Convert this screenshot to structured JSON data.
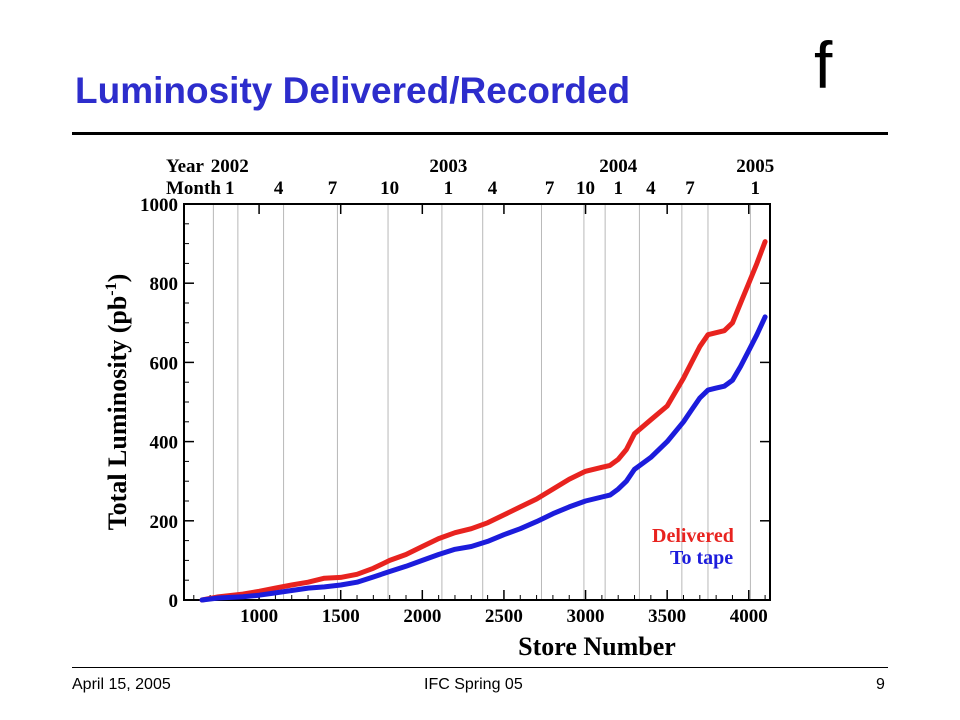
{
  "slide": {
    "title": "Luminosity Delivered/Recorded",
    "logo_text": "f",
    "footer_date": "April 15, 2005",
    "footer_center": "IFC Spring 05",
    "page_number": "9",
    "title_color": "#2d2dcc"
  },
  "chart_data": {
    "type": "line",
    "xlabel": "Store Number",
    "ylabel": "Total Luminosity (pb-1)",
    "ylabel_main": "Total Luminosity (pb",
    "ylabel_sup": "-1",
    "ylabel_close": ")",
    "xlim": [
      540,
      4130
    ],
    "ylim": [
      0,
      1000
    ],
    "x_ticks": [
      1000,
      1500,
      2000,
      2500,
      3000,
      3500,
      4000
    ],
    "y_ticks": [
      0,
      200,
      400,
      600,
      800,
      1000
    ],
    "top_axis": {
      "year_label": "Year",
      "month_label": "Month",
      "years": [
        {
          "label": "2002",
          "x": 820
        },
        {
          "label": "2003",
          "x": 2160
        },
        {
          "label": "2004",
          "x": 3200
        },
        {
          "label": "2005",
          "x": 4040
        }
      ],
      "months": [
        {
          "label": "1",
          "x": 820
        },
        {
          "label": "4",
          "x": 1120
        },
        {
          "label": "7",
          "x": 1450
        },
        {
          "label": "10",
          "x": 1800
        },
        {
          "label": "1",
          "x": 2160
        },
        {
          "label": "4",
          "x": 2430
        },
        {
          "label": "7",
          "x": 2780
        },
        {
          "label": "10",
          "x": 3000
        },
        {
          "label": "1",
          "x": 3200
        },
        {
          "label": "4",
          "x": 3400
        },
        {
          "label": "7",
          "x": 3640
        },
        {
          "label": "1",
          "x": 4040
        }
      ]
    },
    "gridlines_x": [
      720,
      870,
      1150,
      1480,
      1790,
      2120,
      2370,
      2730,
      2990,
      3120,
      3330,
      3590,
      3750,
      4010
    ],
    "legend_position": "bottom-right",
    "series": [
      {
        "name": "Delivered",
        "color": "#e8231f",
        "x": [
          650,
          750,
          900,
          1000,
          1100,
          1200,
          1300,
          1400,
          1500,
          1600,
          1700,
          1800,
          1900,
          2000,
          2100,
          2200,
          2300,
          2400,
          2500,
          2600,
          2700,
          2800,
          2900,
          3000,
          3100,
          3150,
          3200,
          3250,
          3300,
          3400,
          3500,
          3600,
          3650,
          3700,
          3750,
          3800,
          3850,
          3900,
          3950,
          4000,
          4050,
          4100
        ],
        "y": [
          0,
          8,
          15,
          22,
          30,
          38,
          45,
          55,
          57,
          65,
          80,
          100,
          115,
          135,
          155,
          170,
          180,
          195,
          215,
          235,
          255,
          280,
          305,
          325,
          335,
          340,
          355,
          380,
          420,
          455,
          490,
          560,
          600,
          640,
          670,
          675,
          680,
          700,
          750,
          800,
          850,
          905
        ]
      },
      {
        "name": "To tape",
        "color": "#1c1cdc",
        "x": [
          650,
          750,
          900,
          1000,
          1100,
          1200,
          1300,
          1400,
          1500,
          1600,
          1700,
          1800,
          1900,
          2000,
          2100,
          2200,
          2300,
          2400,
          2500,
          2600,
          2700,
          2800,
          2900,
          3000,
          3100,
          3150,
          3200,
          3250,
          3300,
          3400,
          3500,
          3600,
          3650,
          3700,
          3750,
          3800,
          3850,
          3900,
          3950,
          4000,
          4050,
          4100
        ],
        "y": [
          0,
          5,
          8,
          12,
          18,
          24,
          30,
          33,
          38,
          45,
          58,
          72,
          85,
          100,
          115,
          128,
          135,
          148,
          165,
          180,
          198,
          218,
          235,
          250,
          260,
          265,
          280,
          300,
          330,
          360,
          400,
          450,
          480,
          510,
          530,
          535,
          540,
          555,
          590,
          630,
          670,
          715
        ]
      }
    ]
  }
}
